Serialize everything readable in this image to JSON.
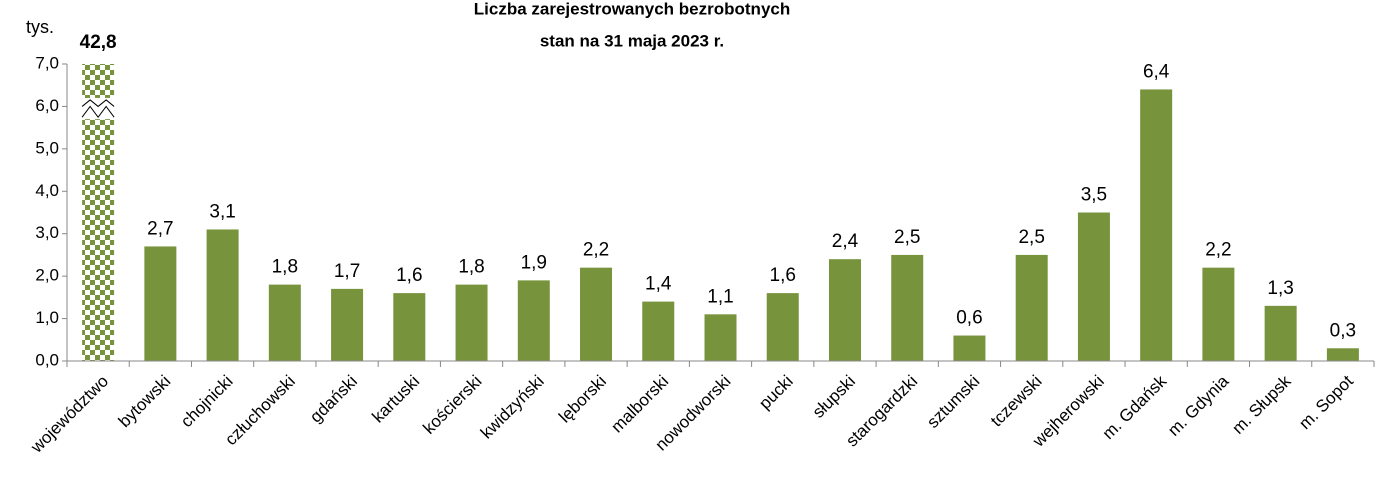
{
  "chart_data": {
    "type": "bar",
    "title": "Liczba zarejestrowanych bezrobotnych",
    "subtitle": "stan na 31 maja 2023 r.",
    "y_label": "tys.",
    "categories": [
      "województwo",
      "bytowski",
      "chojnicki",
      "człuchowski",
      "gdański",
      "kartuski",
      "kościerski",
      "kwidzyński",
      "lęborski",
      "malborski",
      "nowodworski",
      "pucki",
      "słupski",
      "starogardzki",
      "sztumski",
      "tczewski",
      "wejherowski",
      "m. Gdańsk",
      "m. Gdynia",
      "m. Słupsk",
      "m. Sopot"
    ],
    "values": [
      42.8,
      2.7,
      3.1,
      1.8,
      1.7,
      1.6,
      1.8,
      1.9,
      2.2,
      1.4,
      1.1,
      1.6,
      2.4,
      2.5,
      0.6,
      2.5,
      3.5,
      6.4,
      2.2,
      1.3,
      0.3
    ],
    "value_labels": [
      "42,8",
      "2,7",
      "3,1",
      "1,8",
      "1,7",
      "1,6",
      "1,8",
      "1,9",
      "2,2",
      "1,4",
      "1,1",
      "1,6",
      "2,4",
      "2,5",
      "0,6",
      "2,5",
      "3,5",
      "6,4",
      "2,2",
      "1,3",
      "0,3"
    ],
    "color": "#77933c",
    "axis_break": true,
    "ylim": [
      0,
      7
    ],
    "yticks": [
      {
        "value": 0,
        "label": "0,0"
      },
      {
        "value": 1,
        "label": "1,0"
      },
      {
        "value": 2,
        "label": "2,0"
      },
      {
        "value": 3,
        "label": "3,0"
      },
      {
        "value": 4,
        "label": "4,0"
      },
      {
        "value": 5,
        "label": "5,0"
      },
      {
        "value": 6,
        "label": "6,0"
      },
      {
        "value": 7,
        "label": "7,0"
      }
    ],
    "grid": false
  }
}
